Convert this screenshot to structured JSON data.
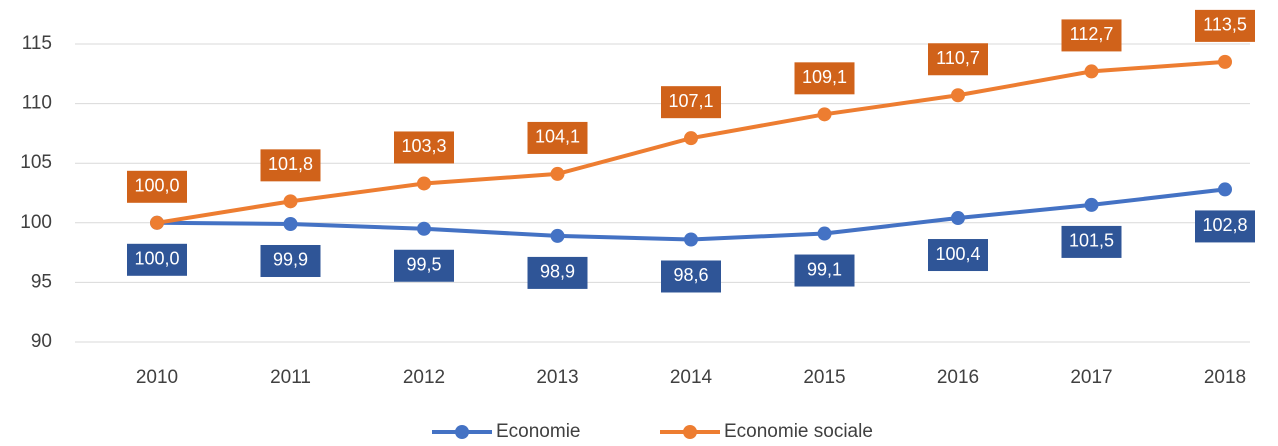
{
  "chart_data": {
    "type": "line",
    "categories": [
      "2010",
      "2011",
      "2012",
      "2013",
      "2014",
      "2015",
      "2016",
      "2017",
      "2018"
    ],
    "series": [
      {
        "name": "Economie",
        "color": "#4472c4",
        "label_color": "#2f5597",
        "values": [
          100.0,
          99.9,
          99.5,
          98.9,
          98.6,
          99.1,
          100.4,
          101.5,
          102.8
        ],
        "value_labels": [
          "100,0",
          "99,9",
          "99,5",
          "98,9",
          "98,6",
          "99,1",
          "100,4",
          "101,5",
          "102,8"
        ]
      },
      {
        "name": "Economie sociale",
        "color": "#ed7d31",
        "label_color": "#d0621a",
        "values": [
          100.0,
          101.8,
          103.3,
          104.1,
          107.1,
          109.1,
          110.7,
          112.7,
          113.5
        ],
        "value_labels": [
          "100,0",
          "101,8",
          "103,3",
          "104,1",
          "107,1",
          "109,1",
          "110,7",
          "112,7",
          "113,5"
        ]
      }
    ],
    "ylim": [
      90,
      115
    ],
    "yticks": [
      90,
      95,
      100,
      105,
      110,
      115
    ],
    "grid": true,
    "legend": "bottom"
  }
}
